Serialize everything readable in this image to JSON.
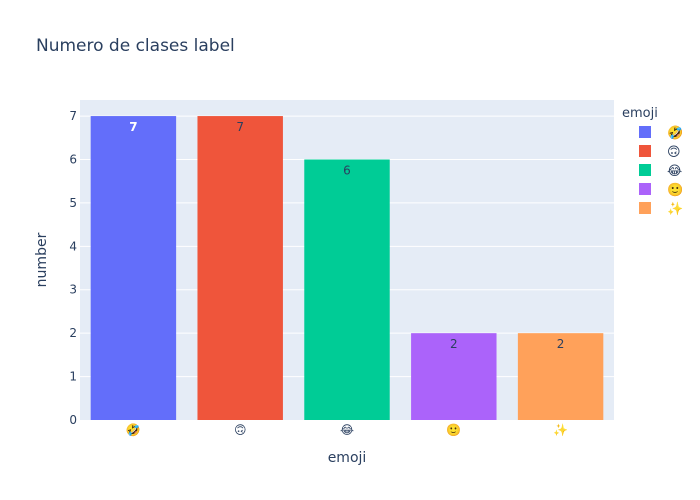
{
  "chart_data": {
    "type": "bar",
    "title": "Numero de clases label",
    "xlabel": "emoji",
    "ylabel": "number",
    "categories": [
      "🤣",
      "🙃",
      "😂",
      "🙂",
      "✨"
    ],
    "values": [
      7,
      7,
      6,
      2,
      2
    ],
    "colors": [
      "#636efa",
      "#EF553B",
      "#00cc96",
      "#ab63fa",
      "#FFA15A"
    ],
    "data_labels": [
      "7",
      "7",
      "6",
      "2",
      "2"
    ],
    "ylim": [
      0,
      7.37
    ],
    "yticks": [
      0,
      1,
      2,
      3,
      4,
      5,
      6,
      7
    ],
    "grid": true,
    "legend": {
      "title": "emoji",
      "placement": "right",
      "entries": [
        "🤣",
        "🙃",
        "😂",
        "🙂",
        "✨"
      ]
    }
  }
}
